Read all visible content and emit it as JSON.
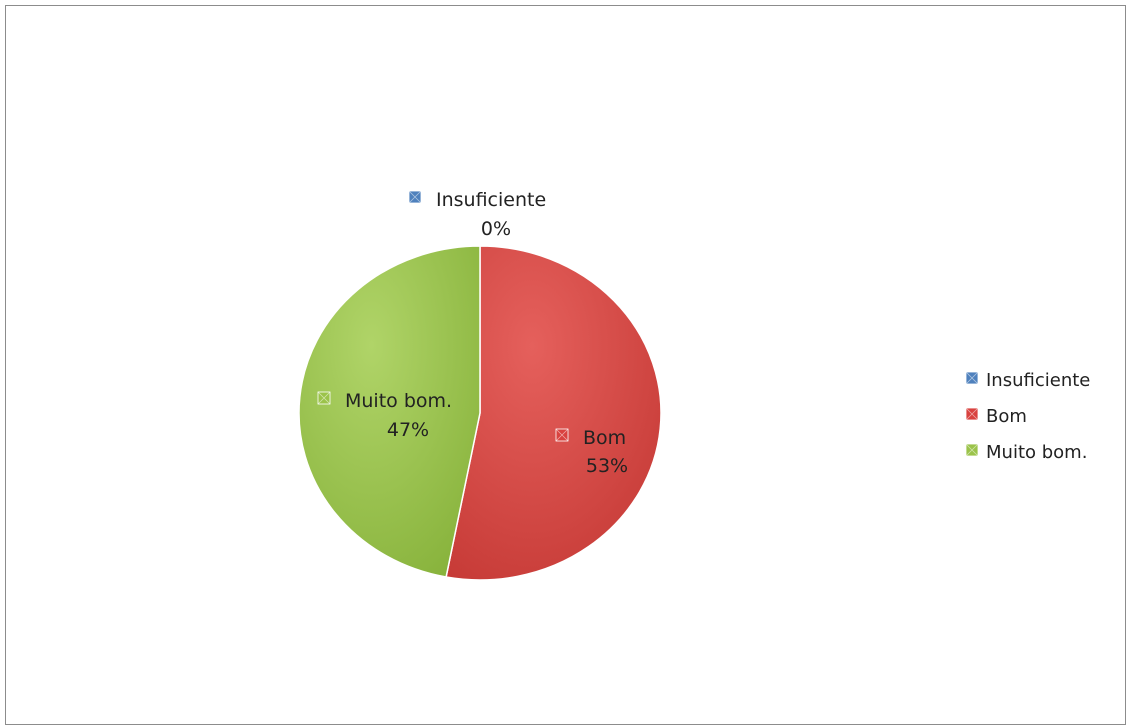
{
  "chart_data": {
    "type": "pie",
    "title": "",
    "categories": [
      "Insuficiente",
      "Bom",
      "Muito bom."
    ],
    "values": [
      0,
      53,
      47
    ],
    "value_labels": [
      "0%",
      "53%",
      "47%"
    ],
    "colors": [
      "#4f81bd",
      "#d9423f",
      "#9bc34a"
    ],
    "legend": {
      "position": "right",
      "entries": [
        "Insuficiente",
        "Bom",
        "Muito bom."
      ]
    }
  }
}
